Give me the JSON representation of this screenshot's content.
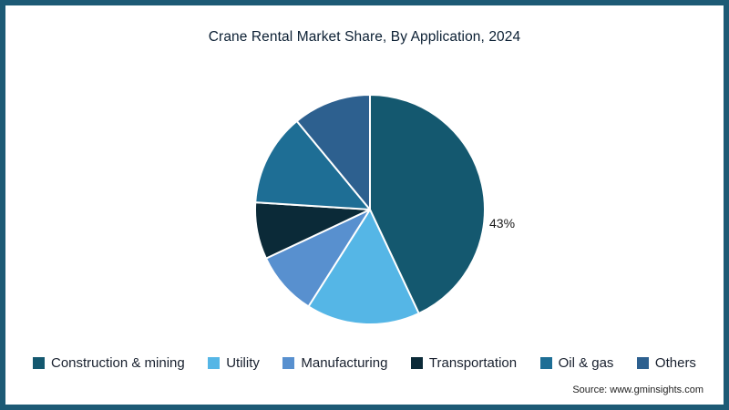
{
  "title": "Crane Rental Market Share, By Application, 2024",
  "source": "Source: www.gminsights.com",
  "frame": {
    "border_color": "#1d5a75",
    "background": "#ffffff"
  },
  "chart_data": {
    "type": "pie",
    "title": "Crane Rental Market Share, By Application, 2024",
    "categories": [
      "Construction & mining",
      "Utility",
      "Manufacturing",
      "Transportation",
      "Oil & gas",
      "Others"
    ],
    "values": [
      43,
      16,
      9,
      8,
      13,
      11
    ],
    "colors": [
      "#14586f",
      "#55b6e6",
      "#5890cf",
      "#0b2a38",
      "#1e6e95",
      "#2d608f"
    ],
    "unit": "%",
    "start_angle_deg": -90,
    "direction": "clockwise",
    "legend_position": "bottom",
    "annotations": [
      {
        "text": "43%",
        "category": "Construction & mining",
        "position": "right-of-pie"
      }
    ]
  }
}
